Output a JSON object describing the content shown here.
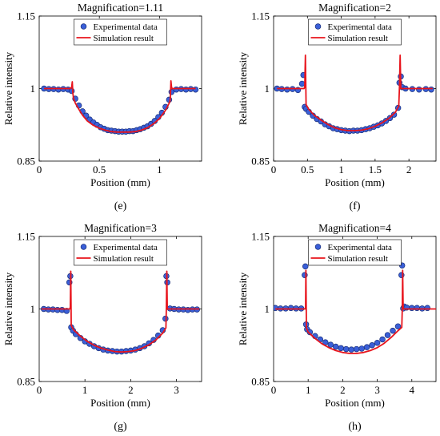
{
  "chart_data": [
    {
      "type": "scatter",
      "panel_label": "(e)",
      "title": "Magnification=1.11",
      "xlabel": "Position (mm)",
      "ylabel": "Relative intensity",
      "xlim": [
        0,
        1.35
      ],
      "ylim": [
        0.85,
        1.15
      ],
      "xticks": [
        0,
        0.5,
        1
      ],
      "xtick_labels": [
        "0",
        "0.5",
        "1"
      ],
      "yticks": [
        0.85,
        1,
        1.15
      ],
      "ytick_labels": [
        "0.85",
        "1",
        "1.15"
      ],
      "legend": {
        "position": "top-center",
        "entries": [
          "Experimental data",
          "Simulation result"
        ]
      },
      "grid": false,
      "series": [
        {
          "name": "Experimental data",
          "kind": "markers",
          "color": "#3a5fd8",
          "x": [
            0.04,
            0.08,
            0.12,
            0.16,
            0.2,
            0.24,
            0.27,
            0.3,
            0.33,
            0.36,
            0.39,
            0.42,
            0.45,
            0.48,
            0.51,
            0.54,
            0.57,
            0.6,
            0.63,
            0.66,
            0.69,
            0.72,
            0.75,
            0.78,
            0.81,
            0.84,
            0.87,
            0.9,
            0.93,
            0.96,
            0.99,
            1.02,
            1.05,
            1.08,
            1.1,
            1.14,
            1.18,
            1.22,
            1.26,
            1.3
          ],
          "y": [
            1.0,
            0.999,
            0.999,
            0.998,
            0.999,
            0.998,
            0.995,
            0.979,
            0.965,
            0.953,
            0.944,
            0.936,
            0.93,
            0.925,
            0.92,
            0.917,
            0.914,
            0.913,
            0.912,
            0.911,
            0.911,
            0.911,
            0.912,
            0.912,
            0.914,
            0.916,
            0.919,
            0.922,
            0.927,
            0.933,
            0.941,
            0.95,
            0.962,
            0.977,
            0.993,
            0.998,
            0.999,
            0.998,
            0.999,
            0.998
          ]
        },
        {
          "name": "Simulation result",
          "kind": "line",
          "color": "#e8141c",
          "x": [
            0.04,
            0.1,
            0.16,
            0.22,
            0.26,
            0.27,
            0.275,
            0.28,
            0.285,
            0.3,
            0.33,
            0.36,
            0.4,
            0.45,
            0.5,
            0.55,
            0.6,
            0.65,
            0.7,
            0.75,
            0.8,
            0.85,
            0.9,
            0.95,
            1.0,
            1.05,
            1.085,
            1.09,
            1.095,
            1.1,
            1.105,
            1.12,
            1.16,
            1.2,
            1.25,
            1.3
          ],
          "y": [
            1.0,
            1.0,
            1.0,
            1.0,
            1.0,
            1.003,
            1.014,
            0.99,
            0.98,
            0.97,
            0.957,
            0.945,
            0.933,
            0.924,
            0.918,
            0.914,
            0.911,
            0.91,
            0.91,
            0.91,
            0.911,
            0.914,
            0.919,
            0.927,
            0.938,
            0.955,
            0.972,
            0.98,
            1.016,
            1.003,
            1.0,
            1.0,
            1.0,
            1.0,
            1.0,
            1.0
          ]
        }
      ]
    },
    {
      "type": "scatter",
      "panel_label": "(f)",
      "title": "Magnification=2",
      "xlabel": "Position (mm)",
      "ylabel": "Relative intensity",
      "xlim": [
        0,
        2.4
      ],
      "ylim": [
        0.85,
        1.15
      ],
      "xticks": [
        0,
        0.5,
        1,
        1.5,
        2
      ],
      "xtick_labels": [
        "0",
        "0.5",
        "1",
        "1.5",
        "2"
      ],
      "yticks": [
        0.85,
        1,
        1.15
      ],
      "ytick_labels": [
        "0.85",
        "1",
        "1.15"
      ],
      "legend": {
        "position": "top-center",
        "entries": [
          "Experimental data",
          "Simulation result"
        ]
      },
      "grid": false,
      "series": [
        {
          "name": "Experimental data",
          "kind": "markers",
          "color": "#3a5fd8",
          "x": [
            0.05,
            0.12,
            0.2,
            0.28,
            0.36,
            0.42,
            0.44,
            0.46,
            0.48,
            0.52,
            0.58,
            0.64,
            0.7,
            0.76,
            0.82,
            0.88,
            0.94,
            1.0,
            1.06,
            1.12,
            1.18,
            1.24,
            1.3,
            1.36,
            1.42,
            1.48,
            1.54,
            1.6,
            1.66,
            1.72,
            1.78,
            1.84,
            1.86,
            1.88,
            1.9,
            1.95,
            2.05,
            2.15,
            2.25,
            2.33
          ],
          "y": [
            1.0,
            0.999,
            0.998,
            0.999,
            0.997,
            1.01,
            1.028,
            0.962,
            0.958,
            0.952,
            0.944,
            0.937,
            0.932,
            0.926,
            0.922,
            0.918,
            0.916,
            0.914,
            0.913,
            0.912,
            0.913,
            0.913,
            0.914,
            0.916,
            0.918,
            0.921,
            0.924,
            0.928,
            0.933,
            0.939,
            0.946,
            0.96,
            1.012,
            1.025,
            1.003,
            1.0,
            0.999,
            0.998,
            0.999,
            0.998
          ]
        },
        {
          "name": "Simulation result",
          "kind": "line",
          "color": "#e8141c",
          "x": [
            0.05,
            0.2,
            0.4,
            0.45,
            0.46,
            0.47,
            0.48,
            0.52,
            0.6,
            0.7,
            0.8,
            0.9,
            1.0,
            1.1,
            1.2,
            1.3,
            1.4,
            1.5,
            1.6,
            1.7,
            1.8,
            1.85,
            1.86,
            1.87,
            1.88,
            1.95,
            2.1,
            2.25,
            2.35
          ],
          "y": [
            1.0,
            1.0,
            1.0,
            1.0,
            1.003,
            1.069,
            0.967,
            0.957,
            0.945,
            0.935,
            0.926,
            0.919,
            0.915,
            0.913,
            0.913,
            0.914,
            0.917,
            0.922,
            0.929,
            0.938,
            0.951,
            0.964,
            1.003,
            1.069,
            1.0,
            1.0,
            1.0,
            1.0,
            1.0
          ]
        }
      ]
    },
    {
      "type": "scatter",
      "panel_label": "(g)",
      "title": "Magnification=3",
      "xlabel": "Position (mm)",
      "ylabel": "Relative intensity",
      "xlim": [
        0,
        3.55
      ],
      "ylim": [
        0.85,
        1.15
      ],
      "xticks": [
        0,
        1,
        2,
        3
      ],
      "xtick_labels": [
        "0",
        "1",
        "2",
        "3"
      ],
      "yticks": [
        0.85,
        1,
        1.15
      ],
      "ytick_labels": [
        "0.85",
        "1",
        "1.15"
      ],
      "legend": {
        "position": "top-center",
        "entries": [
          "Experimental data",
          "Simulation result"
        ]
      },
      "grid": false,
      "series": [
        {
          "name": "Experimental data",
          "kind": "markers",
          "color": "#3a5fd8",
          "x": [
            0.1,
            0.2,
            0.3,
            0.4,
            0.5,
            0.6,
            0.66,
            0.68,
            0.7,
            0.74,
            0.8,
            0.9,
            1.0,
            1.1,
            1.2,
            1.3,
            1.4,
            1.5,
            1.6,
            1.7,
            1.8,
            1.9,
            2.0,
            2.1,
            2.2,
            2.3,
            2.4,
            2.5,
            2.6,
            2.7,
            2.76,
            2.78,
            2.8,
            2.86,
            2.95,
            3.05,
            3.15,
            3.25,
            3.35,
            3.45
          ],
          "y": [
            1.0,
            0.999,
            0.999,
            0.998,
            0.998,
            0.996,
            1.055,
            1.068,
            0.962,
            0.955,
            0.948,
            0.94,
            0.933,
            0.928,
            0.923,
            0.919,
            0.916,
            0.914,
            0.913,
            0.912,
            0.912,
            0.913,
            0.914,
            0.916,
            0.919,
            0.923,
            0.929,
            0.936,
            0.945,
            0.956,
            0.98,
            1.068,
            1.055,
            1.001,
            1.0,
            0.999,
            0.999,
            0.998,
            0.999,
            0.999
          ]
        },
        {
          "name": "Simulation result",
          "kind": "line",
          "color": "#e8141c",
          "x": [
            0.05,
            0.3,
            0.6,
            0.67,
            0.68,
            0.69,
            0.7,
            0.75,
            0.9,
            1.05,
            1.2,
            1.35,
            1.5,
            1.65,
            1.8,
            1.95,
            2.1,
            2.25,
            2.4,
            2.55,
            2.7,
            2.77,
            2.78,
            2.79,
            2.8,
            2.9,
            3.1,
            3.3,
            3.5
          ],
          "y": [
            1.0,
            1.0,
            1.0,
            1.0,
            1.004,
            1.078,
            0.966,
            0.957,
            0.944,
            0.933,
            0.925,
            0.919,
            0.915,
            0.912,
            0.911,
            0.912,
            0.914,
            0.919,
            0.926,
            0.936,
            0.95,
            0.961,
            1.004,
            1.078,
            1.0,
            1.0,
            1.0,
            1.0,
            1.0
          ]
        }
      ]
    },
    {
      "type": "scatter",
      "panel_label": "(h)",
      "title": "Magnification=4",
      "xlabel": "Position (mm)",
      "ylabel": "Relative intensity",
      "xlim": [
        0,
        4.7
      ],
      "ylim": [
        0.85,
        1.15
      ],
      "xticks": [
        0,
        1,
        2,
        3,
        4
      ],
      "xtick_labels": [
        "0",
        "1",
        "2",
        "3",
        "4"
      ],
      "yticks": [
        0.85,
        1,
        1.15
      ],
      "ytick_labels": [
        "0.85",
        "1",
        "1.15"
      ],
      "legend": {
        "position": "top-center",
        "entries": [
          "Experimental data",
          "Simulation result"
        ]
      },
      "grid": false,
      "series": [
        {
          "name": "Experimental data",
          "kind": "markers",
          "color": "#3a5fd8",
          "x": [
            0.05,
            0.2,
            0.35,
            0.5,
            0.65,
            0.8,
            0.9,
            0.92,
            0.94,
            0.97,
            1.05,
            1.2,
            1.35,
            1.5,
            1.65,
            1.8,
            1.95,
            2.1,
            2.25,
            2.4,
            2.55,
            2.7,
            2.85,
            3.0,
            3.15,
            3.3,
            3.45,
            3.6,
            3.7,
            3.72,
            3.75,
            3.78,
            3.85,
            4.0,
            4.15,
            4.3,
            4.45
          ],
          "y": [
            1.002,
            1.001,
            1.001,
            1.002,
            1.001,
            1.001,
            1.07,
            1.088,
            0.968,
            0.958,
            0.952,
            0.944,
            0.937,
            0.931,
            0.926,
            0.922,
            0.919,
            0.917,
            0.916,
            0.917,
            0.918,
            0.921,
            0.925,
            0.93,
            0.937,
            0.946,
            0.955,
            0.964,
            1.07,
            1.09,
            1.001,
            1.005,
            1.003,
            1.002,
            1.002,
            1.001,
            1.002
          ]
        },
        {
          "name": "Simulation result",
          "kind": "line",
          "color": "#e8141c",
          "x": [
            0.05,
            0.4,
            0.85,
            0.91,
            0.925,
            0.935,
            0.95,
            1.0,
            1.2,
            1.4,
            1.6,
            1.8,
            2.0,
            2.2,
            2.4,
            2.6,
            2.8,
            3.0,
            3.2,
            3.4,
            3.6,
            3.71,
            3.725,
            3.735,
            3.75,
            3.9,
            4.2,
            4.5,
            4.7
          ],
          "y": [
            1.0,
            1.0,
            1.0,
            1.0,
            1.003,
            1.08,
            0.961,
            0.952,
            0.939,
            0.928,
            0.92,
            0.914,
            0.91,
            0.908,
            0.908,
            0.91,
            0.914,
            0.92,
            0.929,
            0.941,
            0.955,
            0.962,
            1.003,
            1.08,
            1.0,
            1.0,
            1.0,
            1.0,
            1.0
          ]
        }
      ]
    }
  ]
}
